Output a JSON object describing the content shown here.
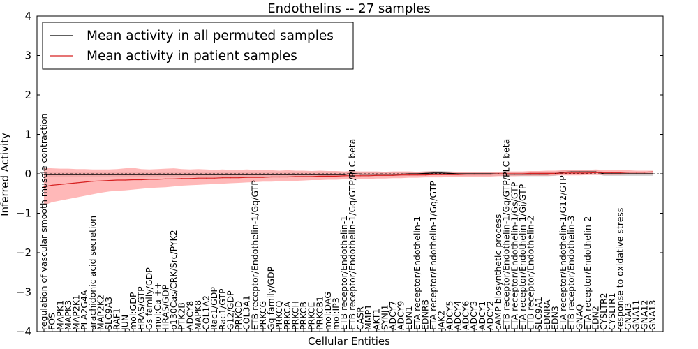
{
  "chart_data": {
    "type": "line",
    "title": "Endothelins -- 27 samples",
    "xlabel": "Cellular Entities",
    "ylabel": "Inferred Activity",
    "ylim": [
      -4,
      4
    ],
    "yticks": [
      -4,
      -3,
      -2,
      -1,
      0,
      1,
      2,
      3,
      4
    ],
    "ytick_labels": [
      "−4",
      "−3",
      "−2",
      "−1",
      "0",
      "1",
      "2",
      "3",
      "4"
    ],
    "legend": {
      "placement": "top-left",
      "entries": [
        "Mean activity in all permuted samples",
        "Mean activity in patient samples"
      ]
    },
    "colors": {
      "permuted": "#000000",
      "patient": "#d62020",
      "band": "#ff9a9a",
      "permuted_band": "#9a9a9a"
    },
    "categories": [
      "regulation of vascular smooth muscle contraction",
      "FOS",
      "MAPK1",
      "MAPK3",
      "MAP2K1",
      "PLA2G4A",
      "arachidonic acid secretion",
      "MAP2K2",
      "SLC9A3",
      "RAF1",
      "JUN",
      "mol:GDP",
      "HRAS/GTP",
      "Gs family/GDP",
      "mol:Ca ++",
      "HRAS/GDP",
      "p130Cas/CRK/Src/PYK2",
      "PTK2B",
      "ADCY8",
      "MAPK8",
      "COL1A2",
      "Rac1/GDP",
      "Rac1/GTP",
      "G12/GDP",
      "PRKCD",
      "COL3A1",
      "ETB receptor/Endothelin-1/Gq/GTP",
      "PRKCG",
      "Gq family/GDP",
      "PRKCQ",
      "PRKCA",
      "PRKCH",
      "PRKCB",
      "PRKCE",
      "PRKCB1",
      "mol:DAG",
      "mol:IP3",
      "ETB receptor/Endothelin-1",
      "ETB receptor/Endothelin-1/Gq/GTP/PLC beta",
      "CASR",
      "MMP1",
      "AKT1",
      "SYNJ1",
      "ADCY7",
      "ADCY9",
      "EDN1",
      "ETA receptor/Endothelin-1",
      "EDNRB",
      "ETA receptor/Endothelin-1/Gq/GTP",
      "JAK2",
      "ADCY5",
      "ADCY4",
      "ADCY6",
      "ADCY3",
      "ADCY1",
      "ADCY2",
      "cAMP biosynthetic process",
      "ETB receptor/Endothelin-1/Gq/GTP/PLC beta",
      "ETA receptor/Endothelin-1/Gs/GTP",
      "ETA receptor/Endothelin-1/Gi/GTP",
      "ETB receptor/Endothelin-2",
      "SLC9A1",
      "EDNRA",
      "EDN3",
      "ETA receptor/Endothelin-1/G12/GTP",
      "ETB receptor/Endothelin-3",
      "GNAQ",
      "ETA receptor/Endothelin-2",
      "EDN2",
      "CYSLTR2",
      "CYSLTR1",
      "response to oxidative stress",
      "GNAI3",
      "GNA11",
      "GNA12",
      "GNA13"
    ],
    "series": [
      {
        "name": "Mean activity in patient samples",
        "values": [
          -0.33,
          -0.29,
          -0.27,
          -0.25,
          -0.23,
          -0.21,
          -0.19,
          -0.18,
          -0.17,
          -0.16,
          -0.16,
          -0.15,
          -0.15,
          -0.14,
          -0.14,
          -0.13,
          -0.13,
          -0.12,
          -0.12,
          -0.11,
          -0.11,
          -0.11,
          -0.1,
          -0.1,
          -0.1,
          -0.09,
          -0.09,
          -0.09,
          -0.08,
          -0.08,
          -0.08,
          -0.07,
          -0.07,
          -0.07,
          -0.06,
          -0.06,
          -0.06,
          -0.05,
          -0.05,
          -0.05,
          -0.05,
          -0.04,
          -0.04,
          -0.04,
          -0.03,
          -0.03,
          -0.03,
          -0.03,
          -0.02,
          -0.02,
          -0.02,
          -0.02,
          -0.01,
          -0.01,
          -0.01,
          -0.01,
          0.0,
          0.0,
          0.0,
          0.0,
          0.01,
          0.01,
          0.01,
          0.01,
          0.02,
          0.02,
          0.02,
          0.02,
          0.03,
          0.03,
          0.03,
          0.03,
          0.04,
          0.04,
          0.04,
          0.05
        ],
        "lower": [
          -0.8,
          -0.72,
          -0.68,
          -0.64,
          -0.6,
          -0.56,
          -0.52,
          -0.48,
          -0.45,
          -0.43,
          -0.42,
          -0.4,
          -0.38,
          -0.36,
          -0.35,
          -0.34,
          -0.32,
          -0.3,
          -0.29,
          -0.28,
          -0.27,
          -0.26,
          -0.25,
          -0.24,
          -0.23,
          -0.22,
          -0.21,
          -0.2,
          -0.2,
          -0.19,
          -0.18,
          -0.18,
          -0.17,
          -0.16,
          -0.16,
          -0.15,
          -0.15,
          -0.14,
          -0.14,
          -0.13,
          -0.13,
          -0.12,
          -0.12,
          -0.11,
          -0.11,
          -0.1,
          -0.1,
          -0.09,
          -0.09,
          -0.09,
          -0.08,
          -0.08,
          -0.08,
          -0.07,
          -0.07,
          -0.07,
          -0.06,
          -0.06,
          -0.06,
          -0.05,
          -0.05,
          -0.05,
          -0.05,
          -0.04,
          -0.04,
          -0.04,
          -0.04,
          -0.03,
          -0.03,
          -0.03,
          -0.03,
          -0.03,
          -0.02,
          -0.02,
          -0.02,
          -0.02
        ],
        "upper": [
          0.15,
          0.14,
          0.13,
          0.13,
          0.12,
          0.12,
          0.11,
          0.11,
          0.11,
          0.12,
          0.14,
          0.15,
          0.12,
          0.11,
          0.12,
          0.13,
          0.14,
          0.12,
          0.11,
          0.12,
          0.11,
          0.1,
          0.11,
          0.1,
          0.1,
          0.11,
          0.1,
          0.09,
          0.09,
          0.08,
          0.09,
          0.08,
          0.08,
          0.07,
          0.08,
          0.07,
          0.07,
          0.06,
          0.07,
          0.06,
          0.06,
          0.06,
          0.05,
          0.06,
          0.06,
          0.06,
          0.05,
          0.06,
          0.06,
          0.05,
          0.05,
          0.05,
          0.05,
          0.05,
          0.05,
          0.05,
          0.05,
          0.06,
          0.06,
          0.06,
          0.07,
          0.07,
          0.08,
          0.08,
          0.09,
          0.09,
          0.1,
          0.1,
          0.11,
          0.1,
          0.1,
          0.09,
          0.09,
          0.08,
          0.08,
          0.08
        ]
      },
      {
        "name": "Mean activity in all permuted samples",
        "values": [
          -0.02,
          -0.02,
          -0.02,
          -0.02,
          -0.02,
          -0.02,
          -0.02,
          -0.02,
          -0.02,
          -0.02,
          -0.02,
          -0.02,
          -0.02,
          -0.02,
          -0.02,
          -0.02,
          -0.02,
          -0.02,
          -0.02,
          -0.02,
          -0.02,
          -0.02,
          -0.02,
          -0.02,
          -0.02,
          -0.02,
          -0.02,
          -0.02,
          -0.02,
          -0.02,
          -0.02,
          -0.02,
          -0.02,
          -0.02,
          -0.02,
          -0.02,
          -0.02,
          -0.02,
          0.01,
          -0.01,
          -0.01,
          -0.01,
          -0.01,
          -0.01,
          -0.01,
          0.0,
          0.0,
          0.01,
          0.02,
          0.02,
          0.01,
          0.0,
          0.0,
          0.0,
          0.0,
          0.0,
          0.0,
          -0.01,
          -0.01,
          -0.01,
          -0.01,
          -0.01,
          -0.01,
          0.0,
          0.04,
          0.05,
          0.05,
          0.05,
          0.05,
          0.0,
          0.0,
          0.0,
          0.0,
          0.0,
          0.0,
          0.0
        ]
      }
    ]
  }
}
